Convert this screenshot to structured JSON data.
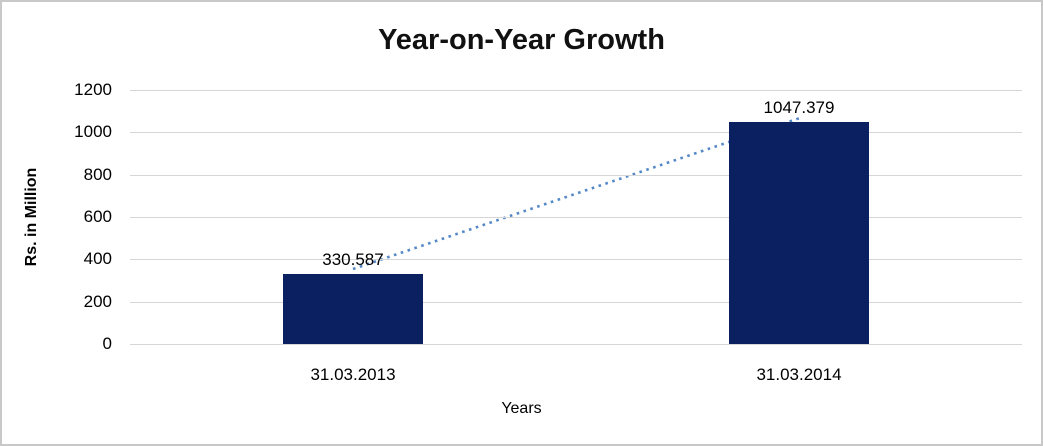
{
  "chart_data": {
    "type": "bar",
    "title": "Year-on-Year Growth",
    "categories": [
      "31.03.2013",
      "31.03.2014"
    ],
    "values": [
      330.587,
      1047.379
    ],
    "value_labels": [
      "330.587",
      "1047.379"
    ],
    "xlabel": "Years",
    "ylabel": "Rs. in Million",
    "ylim": [
      0,
      1200
    ],
    "yticks": [
      0,
      200,
      400,
      600,
      800,
      1000,
      1200
    ],
    "grid": true,
    "legend": "none",
    "trendline": {
      "style": "dotted",
      "from_category": "31.03.2013",
      "to_category": "31.03.2014"
    }
  },
  "colors": {
    "bar": "#0A2060",
    "trend": "#5488C7",
    "gridline": "#D6D6D6",
    "text": "#000000",
    "frame_border": "#C8C8C8",
    "background": "#FFFFFF"
  }
}
